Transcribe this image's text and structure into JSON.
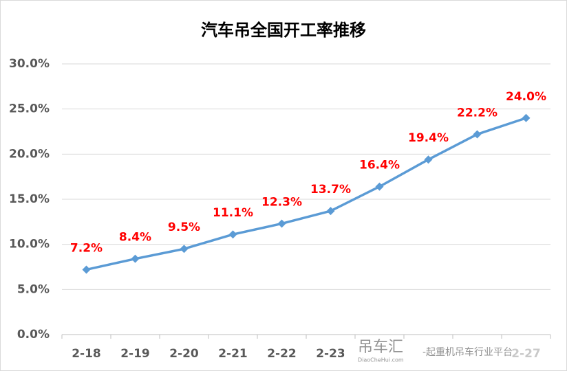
{
  "chart_data": {
    "type": "line",
    "title": "汽车吊全国开工率推移",
    "categories": [
      "2-18",
      "2-19",
      "2-20",
      "2-21",
      "2-22",
      "2-23",
      null,
      null,
      null,
      "2-27"
    ],
    "series": [
      {
        "color": "#5b9bd5",
        "values": [
          7.2,
          8.4,
          9.5,
          11.1,
          12.3,
          13.7,
          16.4,
          19.4,
          22.2,
          24.0
        ],
        "value_labels": [
          "7.2%",
          "8.4%",
          "9.5%",
          "11.1%",
          "12.3%",
          "13.7%",
          "16.4%",
          "19.4%",
          "22.2%",
          "24.0%"
        ]
      }
    ],
    "value_label_color": "#ff0000",
    "ylim": [
      0,
      30
    ],
    "yticks": [
      {
        "value": 0,
        "label": "0.0%"
      },
      {
        "value": 5,
        "label": "5.0%"
      },
      {
        "value": 10,
        "label": "10.0%"
      },
      {
        "value": 15,
        "label": "15.0%"
      },
      {
        "value": 20,
        "label": "20.0%"
      },
      {
        "value": 25,
        "label": "25.0%"
      },
      {
        "value": 30,
        "label": "30.0%"
      }
    ],
    "grid": true,
    "watermark": {
      "brand": "吊车汇",
      "site": "DiaoCheHui.com",
      "slogan": "-起重机吊车行业平台"
    }
  }
}
